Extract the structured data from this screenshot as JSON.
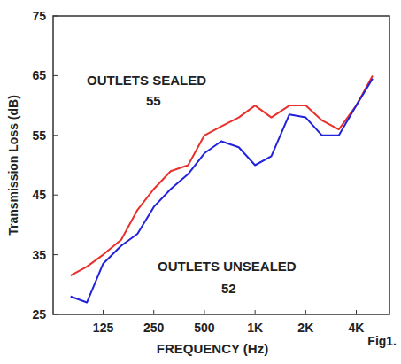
{
  "chart_data": {
    "type": "line",
    "x_label": "FREQUENCY (Hz)",
    "y_label": "Transmission Loss (dB)",
    "log": "x",
    "grid": false,
    "x": [
      80,
      100,
      125,
      160,
      200,
      250,
      315,
      400,
      500,
      630,
      800,
      1000,
      1250,
      1600,
      2000,
      2500,
      3150,
      4000,
      5000
    ],
    "series": [
      {
        "name": "OUTLETS SEALED",
        "color": "#e8302c",
        "values": [
          31.5,
          33,
          35,
          37.5,
          42.5,
          46,
          49,
          50,
          55,
          56.5,
          58,
          60,
          58,
          60,
          60,
          57.5,
          56,
          60,
          65
        ]
      },
      {
        "name": "OUTLETS UNSEALED",
        "color": "#2222dd",
        "values": [
          28,
          27,
          33.5,
          36.5,
          38.5,
          43,
          46,
          48.5,
          52,
          54,
          53,
          50,
          51.5,
          58.5,
          58,
          55,
          55,
          60,
          64.5
        ]
      }
    ],
    "annotations": [
      "55",
      "52",
      "Fig1."
    ],
    "xlim": [
      63,
      6300
    ],
    "xticks": [
      125,
      250,
      500,
      {
        "value": 1000,
        "label": "1K"
      },
      {
        "value": 2000,
        "label": "2K"
      },
      {
        "value": 4000,
        "label": "4K"
      }
    ],
    "ylim": [
      25,
      75
    ],
    "yticks": [
      25,
      35,
      45,
      55,
      65,
      75
    ]
  }
}
